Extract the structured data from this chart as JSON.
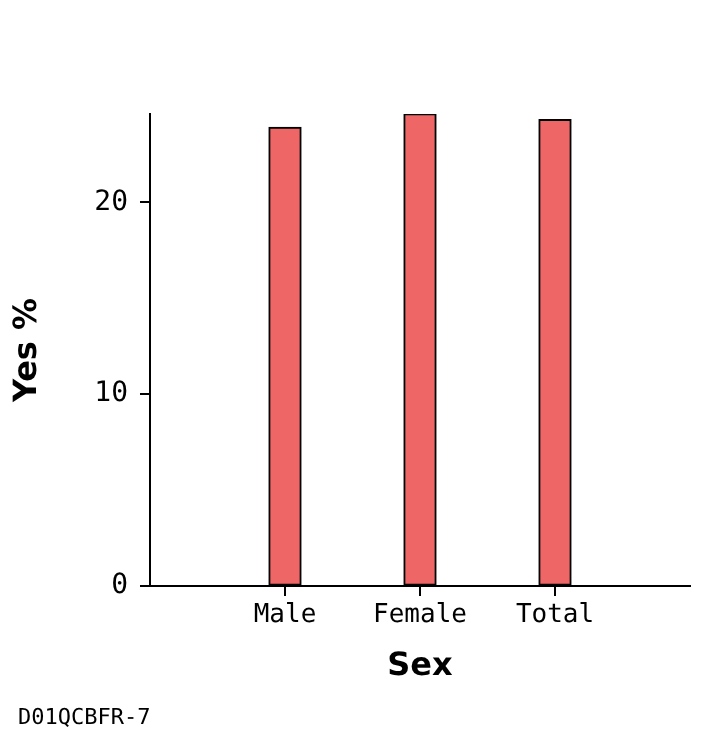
{
  "chart_data": {
    "type": "bar",
    "xlabel": "Sex",
    "ylabel": "Yes %",
    "categories": [
      "Male",
      "Female",
      "Total"
    ],
    "values": [
      23.9,
      24.6,
      24.3
    ],
    "color": "#ee6666",
    "ylim": [
      0,
      24.6
    ],
    "yticks": [
      0,
      10,
      20
    ],
    "grid": false,
    "legend": false,
    "annotations": [
      "D01QCBFR-7"
    ]
  }
}
